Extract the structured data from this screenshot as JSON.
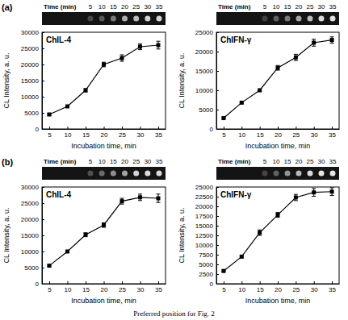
{
  "panel_labels": [
    "(a)",
    "(b)"
  ],
  "caption": "Preferred position for Fig. 2",
  "chart_data": [
    {
      "type": "line",
      "title": "ChIL-4",
      "xlabel": "Incubation time, min",
      "ylabel": "CL Intensity, a. u.",
      "x": [
        5,
        10,
        15,
        20,
        25,
        30,
        35
      ],
      "values": [
        4500,
        7000,
        12000,
        20000,
        22000,
        25500,
        26000
      ],
      "errors": [
        300,
        300,
        500,
        700,
        1000,
        900,
        1200
      ],
      "color": "#000000",
      "marker": "square",
      "xlim": [
        3,
        37
      ],
      "xticks": [
        5,
        10,
        15,
        20,
        25,
        30,
        35
      ],
      "ylim": [
        0,
        30000
      ],
      "yticks": [
        0,
        5000,
        10000,
        15000,
        20000,
        25000,
        30000
      ],
      "strip": {
        "label": "Time (min)",
        "times": [
          5,
          10,
          15,
          20,
          25,
          30,
          35
        ]
      }
    },
    {
      "type": "line",
      "title": "ChIFN-γ",
      "xlabel": "Incubation time, min",
      "ylabel": "CL Intensity, a. u.",
      "x": [
        5,
        10,
        15,
        20,
        25,
        30,
        35
      ],
      "values": [
        2800,
        6800,
        10000,
        15800,
        18500,
        22300,
        23000
      ],
      "errors": [
        200,
        200,
        300,
        600,
        800,
        900,
        800
      ],
      "color": "#000000",
      "marker": "square",
      "xlim": [
        3,
        37
      ],
      "xticks": [
        5,
        10,
        15,
        20,
        25,
        30,
        35
      ],
      "ylim": [
        0,
        25000
      ],
      "yticks": [
        0,
        5000,
        10000,
        15000,
        20000,
        25000
      ],
      "strip": {
        "label": "Time (min)",
        "times": [
          5,
          10,
          15,
          20,
          25,
          30,
          35
        ]
      }
    },
    {
      "type": "line",
      "title": "ChIL-4",
      "xlabel": "Incubation time, min",
      "ylabel": "CL Intensity, a. u.",
      "x": [
        5,
        10,
        15,
        20,
        25,
        30,
        35
      ],
      "values": [
        5600,
        10000,
        15200,
        18200,
        25600,
        26800,
        26500
      ],
      "errors": [
        200,
        300,
        600,
        700,
        900,
        1000,
        1300
      ],
      "color": "#000000",
      "marker": "square",
      "xlim": [
        3,
        37
      ],
      "xticks": [
        5,
        10,
        15,
        20,
        25,
        30,
        35
      ],
      "ylim": [
        0,
        30000
      ],
      "yticks": [
        0,
        5000,
        10000,
        15000,
        20000,
        25000,
        30000
      ],
      "strip": {
        "label": "Time (min)",
        "times": [
          5,
          10,
          15,
          20,
          25,
          30,
          35
        ]
      }
    },
    {
      "type": "line",
      "title": "ChIFN-γ",
      "xlabel": "Incubation time, min",
      "ylabel": "CL Intensity, a. u.",
      "x": [
        5,
        10,
        15,
        20,
        25,
        30,
        35
      ],
      "values": [
        3300,
        7000,
        13200,
        17800,
        22300,
        23600,
        23800
      ],
      "errors": [
        200,
        300,
        700,
        600,
        800,
        1000,
        1000
      ],
      "color": "#000000",
      "marker": "square",
      "xlim": [
        3,
        37
      ],
      "xticks": [
        5,
        10,
        15,
        20,
        25,
        30,
        35
      ],
      "ylim": [
        0,
        25000
      ],
      "yticks": [
        0,
        2500,
        5000,
        7500,
        10000,
        12500,
        15000,
        17500,
        20000,
        22500,
        25000
      ],
      "strip": {
        "label": "Time (min)",
        "times": [
          5,
          10,
          15,
          20,
          25,
          30,
          35
        ]
      }
    }
  ]
}
